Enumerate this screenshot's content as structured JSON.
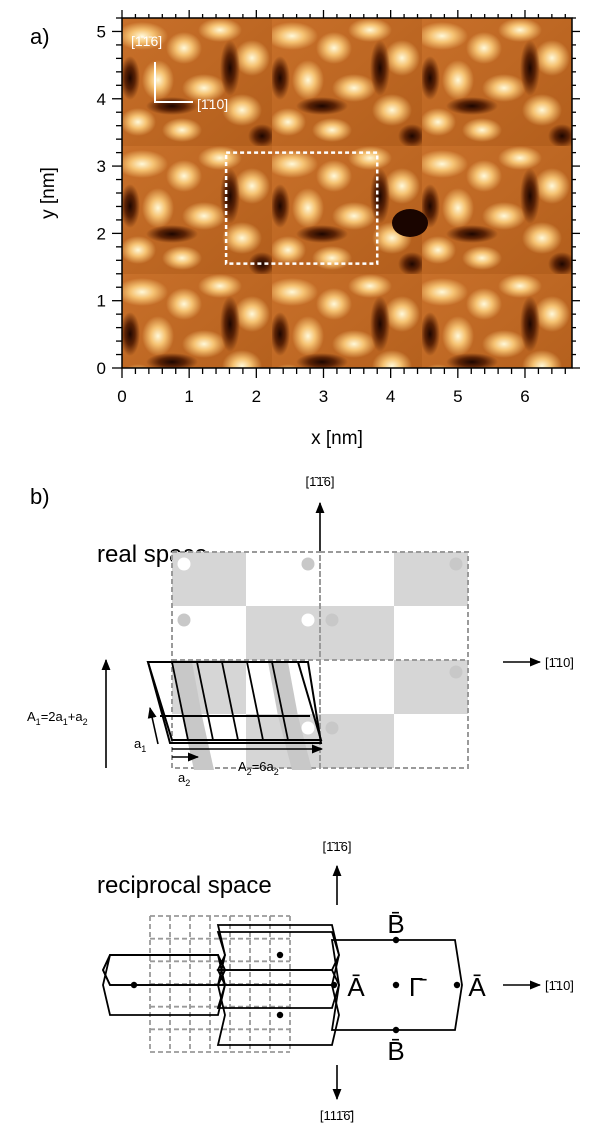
{
  "panel_a": {
    "label": "a)",
    "y_axis_label": "y [nm]",
    "x_axis_label": "x [nm]",
    "x_ticks": [
      "0",
      "1",
      "2",
      "3",
      "4",
      "5",
      "6"
    ],
    "y_ticks": [
      "0",
      "1",
      "2",
      "3",
      "4",
      "5"
    ],
    "x_range": [
      0,
      6.7
    ],
    "y_range": [
      0,
      5.2
    ],
    "direction_up": "[1̄1̄6]",
    "direction_right": "[1̄10]",
    "highlight_box_nm": {
      "x0": 1.55,
      "x1": 3.8,
      "y0": 1.55,
      "y1": 3.2
    },
    "colormap": [
      "#2a0b00",
      "#8a3a08",
      "#d07a2c",
      "#f2b664",
      "#fff3c8"
    ]
  },
  "panel_b": {
    "label": "b)",
    "real_space_label": "real space",
    "reciprocal_space_label": "reciprocal space",
    "dir_116_top": "[1̄1̄6]",
    "dir_110_right": "[1̄10]",
    "dir_116_recip_top": "[1̄1̄6]",
    "dir_110_recip_right": "[1̄10]",
    "dir_116_recip_bottom": "[111̄6̄]",
    "A1_label": "A",
    "A1_sub": "1",
    "A1_eq": "=2a",
    "A1_eq_sub": "1",
    "A1_plus": "+a",
    "A1_plus_sub": "2",
    "a1_label": "a",
    "a1_sub": "1",
    "a2_label": "a",
    "a2_sub": "2",
    "A2_label": "A",
    "A2_sub": "2",
    "A2_eq": "=6a",
    "A2_eq_sub": "2",
    "pt_B_top": "B̄",
    "pt_A_left": "Ā",
    "pt_Gamma": "Γ̄",
    "pt_A_right": "Ā",
    "pt_B_bottom": "B̄",
    "shade_color": "#d6d6d6",
    "grid_color": "#9a9a9a"
  }
}
